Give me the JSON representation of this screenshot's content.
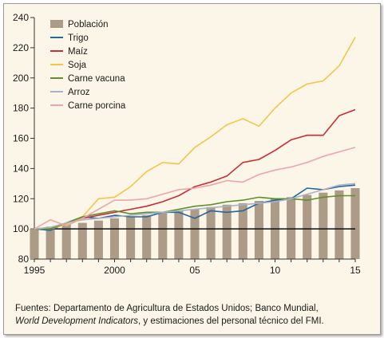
{
  "chart_data": {
    "type": "bar+line",
    "x": [
      1995,
      1996,
      1997,
      1998,
      1999,
      2000,
      2001,
      2002,
      2003,
      2004,
      2005,
      2006,
      2007,
      2008,
      2009,
      2010,
      2011,
      2012,
      2013,
      2014,
      2015
    ],
    "xticks": [
      1995,
      2000,
      2005,
      2010,
      2015
    ],
    "xtick_labels": [
      "1995",
      "2000",
      "05",
      "10",
      "15"
    ],
    "ylim": [
      80,
      240
    ],
    "yticks": [
      80,
      100,
      120,
      140,
      160,
      180,
      200,
      220,
      240
    ],
    "baseline": 100,
    "grid": false,
    "legend_position": "top-left",
    "bars": {
      "name": "Población",
      "color": "#ab9b87",
      "values": [
        100,
        101.5,
        103,
        104,
        105.5,
        107,
        108,
        109,
        110.5,
        112,
        113,
        114.5,
        116,
        117,
        118.5,
        120,
        121,
        122.5,
        124,
        125.5,
        127
      ]
    },
    "series": [
      {
        "name": "Trigo",
        "color": "#27669b",
        "values": [
          100,
          99,
          104,
          108,
          107,
          109,
          108,
          108,
          111,
          111,
          107,
          112,
          111,
          112,
          117,
          119,
          120,
          127,
          126,
          128,
          129
        ]
      },
      {
        "name": "Maíz",
        "color": "#cc2b38",
        "values": [
          100,
          100,
          104,
          107,
          109,
          111,
          113,
          115,
          118,
          122,
          128,
          131,
          135,
          144,
          146,
          152,
          159,
          162,
          162,
          175,
          179
        ]
      },
      {
        "name": "Soja",
        "color": "#f2c64a",
        "values": [
          100,
          100,
          103,
          108,
          120,
          121,
          128,
          138,
          144,
          143,
          154,
          161,
          169,
          173,
          168,
          180,
          190,
          196,
          198,
          208,
          227
        ]
      },
      {
        "name": "Carne vacuna",
        "color": "#5f8f2b",
        "values": [
          100,
          100,
          104,
          108,
          110,
          112,
          110,
          111,
          111,
          113,
          115,
          116,
          118,
          119,
          121,
          120,
          120,
          119,
          121,
          122,
          122
        ]
      },
      {
        "name": "Arroz",
        "color": "#a9b3c8",
        "values": [
          100,
          101,
          104,
          106,
          107,
          108,
          109,
          110,
          111,
          112,
          113,
          114,
          115,
          116,
          117,
          118,
          120,
          123,
          126,
          129,
          130
        ]
      },
      {
        "name": "Carne porcina",
        "color": "#eca6a9",
        "values": [
          100,
          106,
          102,
          107,
          113,
          119,
          119,
          120,
          123,
          126,
          127,
          129,
          132,
          131,
          136,
          139,
          141,
          144,
          148,
          151,
          154
        ]
      }
    ]
  },
  "source": {
    "line1": "Fuentes: Departamento de Agricultura de Estados Unidos; Banco Mundial,",
    "line2_italic": "World Development Indicators",
    "line2_rest": ", y estimaciones del personal técnico del FMI."
  }
}
